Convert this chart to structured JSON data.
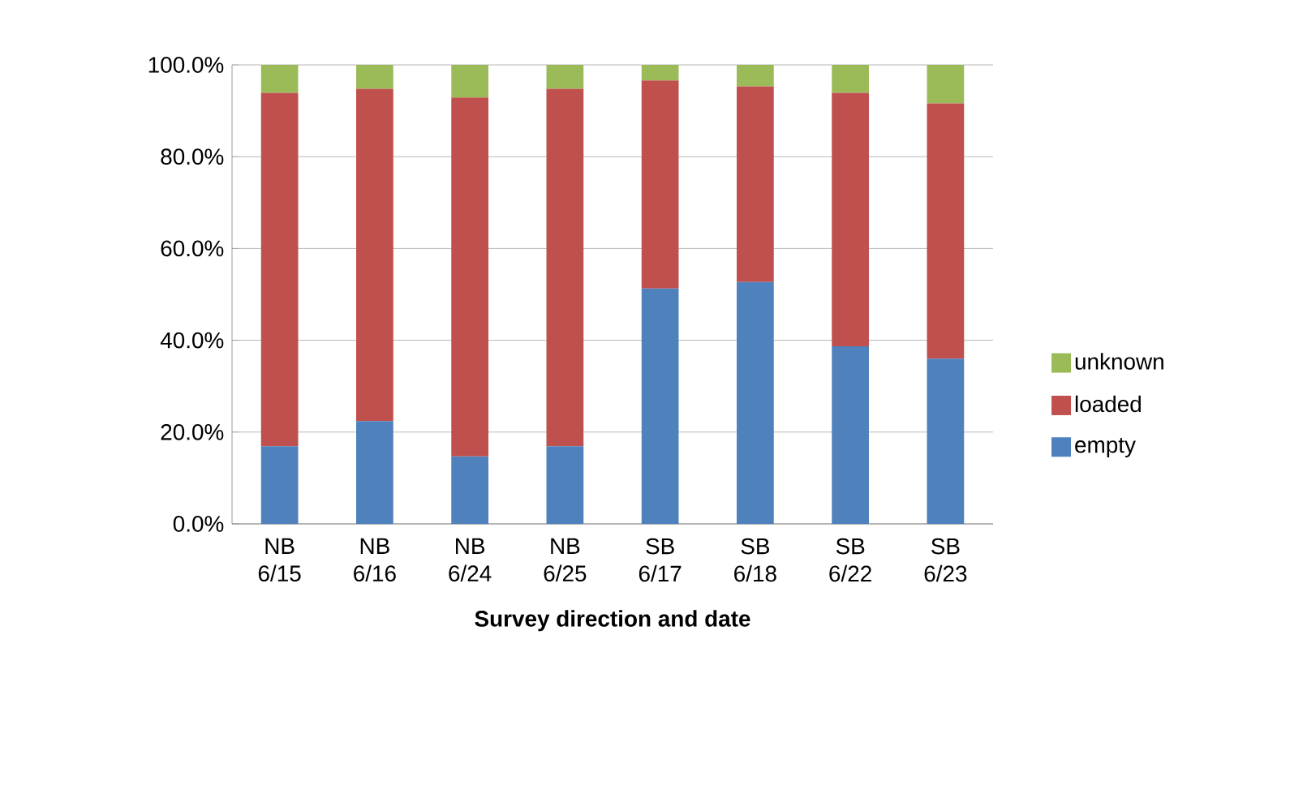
{
  "chart_data": {
    "type": "bar",
    "stacked": true,
    "xlabel": "Survey direction and date",
    "categories": [
      "NB 6/15",
      "NB 6/16",
      "NB 6/24",
      "NB 6/25",
      "SB 6/17",
      "SB 6/18",
      "SB 6/22",
      "SB 6/23"
    ],
    "series": [
      {
        "name": "empty",
        "color": "#4f81bd",
        "values": [
          16.9,
          22.4,
          14.7,
          16.9,
          51.3,
          52.7,
          38.7,
          36.0
        ]
      },
      {
        "name": "loaded",
        "color": "#c0504d",
        "values": [
          77.0,
          72.4,
          78.2,
          77.9,
          45.3,
          42.6,
          55.2,
          55.6
        ]
      },
      {
        "name": "unknown",
        "color": "#9bbb59",
        "values": [
          6.1,
          5.2,
          7.1,
          5.2,
          3.4,
          4.7,
          6.1,
          8.4
        ]
      }
    ],
    "ylim": [
      0,
      100
    ],
    "yticks": [
      {
        "value": 0,
        "label": "0.0%"
      },
      {
        "value": 20,
        "label": "20.0%"
      },
      {
        "value": 40,
        "label": "40.0%"
      },
      {
        "value": 60,
        "label": "60.0%"
      },
      {
        "value": 80,
        "label": "80.0%"
      },
      {
        "value": 100,
        "label": "100.0%"
      }
    ],
    "grid": "y",
    "legend": "right"
  }
}
